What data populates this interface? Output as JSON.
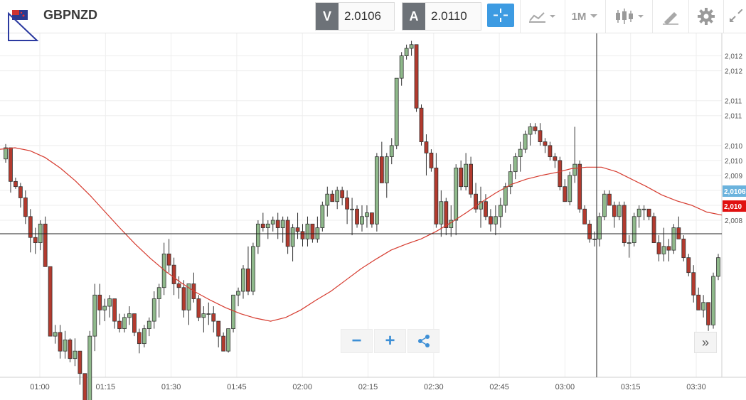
{
  "header": {
    "symbol": "GBPNZD",
    "sell_label": "V",
    "sell_price": "2.0106",
    "buy_label": "A",
    "buy_price": "2.0110",
    "timeframe": "1M"
  },
  "icons": [
    "flag-icon",
    "crosshair-icon",
    "chart-type-icon",
    "candlestick-icon",
    "drawing-tools-icon",
    "settings-icon",
    "expand-icon",
    "zoom-out-icon",
    "zoom-in-icon",
    "share-icon",
    "scroll-right-icon"
  ],
  "colors": {
    "bull": "#8fb98b",
    "bear": "#b33a2e",
    "ma": "#d63b2f",
    "accent": "#3d9be2",
    "bid_tag": "#6bb3dd",
    "ask_tag": "#e01010"
  },
  "y_axis": {
    "labels": [
      "2,012",
      "2,012",
      "2,011",
      "2,011",
      "2,010",
      "2,010",
      "2,009",
      "2,009",
      "2,008",
      "2,008"
    ],
    "values": [
      2.0124,
      2.0122,
      2.0118,
      2.0116,
      2.0112,
      2.011,
      2.0108,
      2.0106,
      2.0104,
      2.0102
    ],
    "tag_bid": "2,0106",
    "tag_ask": "2,010"
  },
  "x_axis": {
    "labels": [
      "01:00",
      "01:15",
      "01:30",
      "01:45",
      "02:00",
      "02:15",
      "02:30",
      "02:45",
      "03:00",
      "03:15",
      "03:30"
    ]
  },
  "chart_data": {
    "type": "candlestick",
    "ylim": [
      2.0081,
      2.0127
    ],
    "x": [],
    "candles": [
      [
        2.01102,
        2.01122,
        2.01097,
        2.01117
      ],
      [
        2.01117,
        2.01117,
        2.01057,
        2.01072
      ],
      [
        2.01072,
        2.01077,
        2.01062,
        2.01065
      ],
      [
        2.01065,
        2.0107,
        2.01037,
        2.0105
      ],
      [
        2.0105,
        2.0106,
        2.01015,
        2.01025
      ],
      [
        2.01025,
        2.01035,
        2.00977,
        2.00997
      ],
      [
        2.00997,
        2.0101,
        2.00975,
        2.0099
      ],
      [
        2.0099,
        2.0102,
        2.0098,
        2.01015
      ],
      [
        2.01015,
        2.01025,
        2.00958,
        2.00958
      ],
      [
        2.00958,
        2.00958,
        2.00865,
        2.00865
      ],
      [
        2.00865,
        2.0088,
        2.00855,
        2.0087
      ],
      [
        2.0087,
        2.0088,
        2.00835,
        2.00845
      ],
      [
        2.00845,
        2.00872,
        2.00835,
        2.0086
      ],
      [
        2.0086,
        2.00862,
        2.0083,
        2.00835
      ],
      [
        2.00835,
        2.00862,
        2.00825,
        2.00845
      ],
      [
        2.00845,
        2.00845,
        2.008,
        2.00815
      ],
      [
        2.00815,
        2.00815,
        2.00777,
        2.00778
      ],
      [
        2.00778,
        2.00872,
        2.00773,
        2.00865
      ],
      [
        2.00865,
        2.00935,
        2.00845,
        2.0092
      ],
      [
        2.0092,
        2.00935,
        2.0088,
        2.009
      ],
      [
        2.009,
        2.00915,
        2.00885,
        2.00905
      ],
      [
        2.00905,
        2.0092,
        2.0089,
        2.00915
      ],
      [
        2.00915,
        2.00915,
        2.00875,
        2.00885
      ],
      [
        2.00885,
        2.00895,
        2.0087,
        2.00875
      ],
      [
        2.00875,
        2.00895,
        2.0087,
        2.0089
      ],
      [
        2.0089,
        2.00905,
        2.0088,
        2.00895
      ],
      [
        2.00895,
        2.00895,
        2.00865,
        2.0087
      ],
      [
        2.0087,
        2.00875,
        2.00842,
        2.00855
      ],
      [
        2.00855,
        2.0088,
        2.0085,
        2.00875
      ],
      [
        2.00875,
        2.0089,
        2.00865,
        2.00885
      ],
      [
        2.00885,
        2.00925,
        2.00875,
        2.00915
      ],
      [
        2.00915,
        2.00935,
        2.0089,
        2.0093
      ],
      [
        2.0093,
        2.0099,
        2.0092,
        2.00975
      ],
      [
        2.00975,
        2.00995,
        2.0095,
        2.0096
      ],
      [
        2.0096,
        2.0097,
        2.0092,
        2.00935
      ],
      [
        2.00935,
        2.00945,
        2.00915,
        2.0093
      ],
      [
        2.0093,
        2.0094,
        2.0089,
        2.009
      ],
      [
        2.009,
        2.00935,
        2.0088,
        2.00935
      ],
      [
        2.00935,
        2.0095,
        2.0091,
        2.00915
      ],
      [
        2.00915,
        2.0092,
        2.00885,
        2.0089
      ],
      [
        2.0089,
        2.00905,
        2.0087,
        2.00895
      ],
      [
        2.00895,
        2.0091,
        2.0088,
        2.00895
      ],
      [
        2.00895,
        2.00905,
        2.0087,
        2.00885
      ],
      [
        2.00885,
        2.00885,
        2.0085,
        2.00865
      ],
      [
        2.00865,
        2.0087,
        2.00845,
        2.00845
      ],
      [
        2.00845,
        2.00875,
        2.00843,
        2.00875
      ],
      [
        2.00875,
        2.0092,
        2.0087,
        2.0092
      ],
      [
        2.0092,
        2.0093,
        2.00905,
        2.00925
      ],
      [
        2.00925,
        2.0096,
        2.00915,
        2.00955
      ],
      [
        2.00955,
        2.00985,
        2.0092,
        2.00925
      ],
      [
        2.00925,
        2.0099,
        2.0092,
        2.00985
      ],
      [
        2.00985,
        2.0102,
        2.00975,
        2.01015
      ],
      [
        2.01015,
        2.0103,
        2.01005,
        2.0101
      ],
      [
        2.0101,
        2.0102,
        2.00995,
        2.01015
      ],
      [
        2.01015,
        2.01025,
        2.01005,
        2.0102
      ],
      [
        2.0102,
        2.0103,
        2.00995,
        2.0101
      ],
      [
        2.0101,
        2.01025,
        2.0099,
        2.0102
      ],
      [
        2.0102,
        2.01025,
        2.00975,
        2.00985
      ],
      [
        2.00985,
        2.01015,
        2.00965,
        2.0101
      ],
      [
        2.0101,
        2.0103,
        2.00995,
        2.01005
      ],
      [
        2.01005,
        2.01015,
        2.00985,
        2.00995
      ],
      [
        2.00995,
        2.01025,
        2.00985,
        2.01015
      ],
      [
        2.01015,
        2.01015,
        2.0099,
        2.00995
      ],
      [
        2.00995,
        2.01025,
        2.0099,
        2.0101
      ],
      [
        2.0101,
        2.01045,
        2.01005,
        2.0104
      ],
      [
        2.0104,
        2.01065,
        2.01025,
        2.01055
      ],
      [
        2.01055,
        2.0106,
        2.01045,
        2.01045
      ],
      [
        2.01045,
        2.01065,
        2.01035,
        2.0106
      ],
      [
        2.0106,
        2.01065,
        2.0104,
        2.0105
      ],
      [
        2.0105,
        2.0106,
        2.01015,
        2.01035
      ],
      [
        2.01035,
        2.0105,
        2.01,
        2.01035
      ],
      [
        2.01035,
        2.0104,
        2.0101,
        2.01015
      ],
      [
        2.01015,
        2.0104,
        2.01005,
        2.01025
      ],
      [
        2.01025,
        2.0104,
        2.0101,
        2.0103
      ],
      [
        2.0103,
        2.0103,
        2.0101,
        2.01015
      ],
      [
        2.01015,
        2.0111,
        2.01005,
        2.01105
      ],
      [
        2.01105,
        2.01125,
        2.0107,
        2.0107
      ],
      [
        2.0107,
        2.0111,
        2.0105,
        2.01105
      ],
      [
        2.01105,
        2.0113,
        2.01095,
        2.0112
      ],
      [
        2.0112,
        2.0121,
        2.01115,
        2.0121
      ],
      [
        2.0121,
        2.01245,
        2.012,
        2.0124
      ],
      [
        2.0124,
        2.01255,
        2.01235,
        2.0125
      ],
      [
        2.0125,
        2.0126,
        2.0124,
        2.01255
      ],
      [
        2.01255,
        2.01255,
        2.01165,
        2.0117
      ],
      [
        2.0117,
        2.01175,
        2.0112,
        2.01125
      ],
      [
        2.01125,
        2.01135,
        2.0108,
        2.0111
      ],
      [
        2.0111,
        2.01115,
        2.01085,
        2.0109
      ],
      [
        2.0109,
        2.0111,
        2.0101,
        2.01015
      ],
      [
        2.01015,
        2.0106,
        2.00998,
        2.01045
      ],
      [
        2.01045,
        2.0105,
        2.01,
        2.0101
      ],
      [
        2.0101,
        2.0104,
        2.00998,
        2.0102
      ],
      [
        2.0102,
        2.01095,
        2.01,
        2.0109
      ],
      [
        2.0109,
        2.011,
        2.0106,
        2.01065
      ],
      [
        2.01065,
        2.0111,
        2.0106,
        2.01095
      ],
      [
        2.01095,
        2.01105,
        2.0105,
        2.01055
      ],
      [
        2.01055,
        2.0107,
        2.0103,
        2.01035
      ],
      [
        2.01035,
        2.01065,
        2.0101,
        2.01045
      ],
      [
        2.01045,
        2.01055,
        2.0102,
        2.01025
      ],
      [
        2.01025,
        2.01035,
        2.01005,
        2.01015
      ],
      [
        2.01015,
        2.0104,
        2.01,
        2.01025
      ],
      [
        2.01025,
        2.0105,
        2.0101,
        2.0104
      ],
      [
        2.0104,
        2.0107,
        2.0103,
        2.01065
      ],
      [
        2.01065,
        2.01095,
        2.01055,
        2.01085
      ],
      [
        2.01085,
        2.0111,
        2.01075,
        2.01105
      ],
      [
        2.01105,
        2.01125,
        2.01085,
        2.01115
      ],
      [
        2.01115,
        2.0114,
        2.0111,
        2.01135
      ],
      [
        2.01135,
        2.0115,
        2.0112,
        2.01145
      ],
      [
        2.01145,
        2.0115,
        2.01135,
        2.0114
      ],
      [
        2.0114,
        2.0115,
        2.0112,
        2.01125
      ],
      [
        2.01125,
        2.0113,
        2.0111,
        2.0112
      ],
      [
        2.0112,
        2.01125,
        2.011,
        2.01105
      ],
      [
        2.01105,
        2.0111,
        2.0109,
        2.011
      ],
      [
        2.011,
        2.01105,
        2.0106,
        2.01065
      ],
      [
        2.01065,
        2.01075,
        2.01045,
        2.01045
      ],
      [
        2.01045,
        2.01085,
        2.0104,
        2.0108
      ],
      [
        2.0108,
        2.01145,
        2.0107,
        2.01095
      ],
      [
        2.01095,
        2.011,
        2.0103,
        2.01035
      ],
      [
        2.01035,
        2.0104,
        2.01015,
        2.01015
      ],
      [
        2.01015,
        2.0102,
        2.0099,
        2.00995
      ],
      [
        2.00995,
        2.01005,
        2.00985,
        2.00995
      ],
      [
        2.00995,
        2.0103,
        2.00985,
        2.01025
      ],
      [
        2.01025,
        2.0106,
        2.0102,
        2.01055
      ],
      [
        2.01055,
        2.0106,
        2.0104,
        2.0104
      ],
      [
        2.0104,
        2.01045,
        2.0101,
        2.01025
      ],
      [
        2.01025,
        2.01045,
        2.0102,
        2.0104
      ],
      [
        2.0104,
        2.01045,
        2.00985,
        2.0099
      ],
      [
        2.0099,
        2.01,
        2.0097,
        2.0099
      ],
      [
        2.0099,
        2.0103,
        2.00985,
        2.01025
      ],
      [
        2.01025,
        2.0104,
        2.0101,
        2.01035
      ],
      [
        2.01035,
        2.0104,
        2.0102,
        2.01035
      ],
      [
        2.01035,
        2.01035,
        2.0102,
        2.01025
      ],
      [
        2.01025,
        2.0103,
        2.0099,
        2.0099
      ],
      [
        2.0099,
        2.01,
        2.00965,
        2.00975
      ],
      [
        2.00975,
        2.0101,
        2.00965,
        2.00985
      ],
      [
        2.00985,
        2.00995,
        2.00965,
        2.0098
      ],
      [
        2.0098,
        2.01015,
        2.00975,
        2.0101
      ],
      [
        2.0101,
        2.01025,
        2.00995,
        2.00995
      ],
      [
        2.00995,
        2.01,
        2.00965,
        2.0097
      ],
      [
        2.0097,
        2.00975,
        2.00945,
        2.0095
      ],
      [
        2.0095,
        2.0096,
        2.0091,
        2.0092
      ],
      [
        2.0092,
        2.0093,
        2.009,
        2.009
      ],
      [
        2.009,
        2.0092,
        2.0089,
        2.0091
      ],
      [
        2.0091,
        2.0091,
        2.00872,
        2.0088
      ],
      [
        2.0088,
        2.0095,
        2.00875,
        2.00945
      ],
      [
        2.00945,
        2.00975,
        2.0094,
        2.0097
      ]
    ],
    "moving_average": [
      2.01115,
      2.01117,
      2.01113,
      2.01104,
      2.0109,
      2.01073,
      2.01053,
      2.01031,
      2.01009,
      2.00988,
      2.00969,
      2.00952,
      2.00937,
      2.00924,
      2.00913,
      2.00903,
      2.00895,
      2.00889,
      2.00885,
      2.0089,
      2.009,
      2.00913,
      2.00925,
      2.0094,
      2.00955,
      2.00968,
      2.0098,
      2.00988,
      2.00995,
      2.01005,
      2.01017,
      2.0103,
      2.01044,
      2.01057,
      2.01068,
      2.01075,
      2.0108,
      2.01084,
      2.01089,
      2.01091,
      2.01091,
      2.01085,
      2.01075,
      2.01065,
      2.01054,
      2.01046,
      2.0104,
      2.01031,
      2.01027
    ],
    "crosshair": {
      "x_time": "03:07",
      "y_value": 2.01002
    }
  }
}
